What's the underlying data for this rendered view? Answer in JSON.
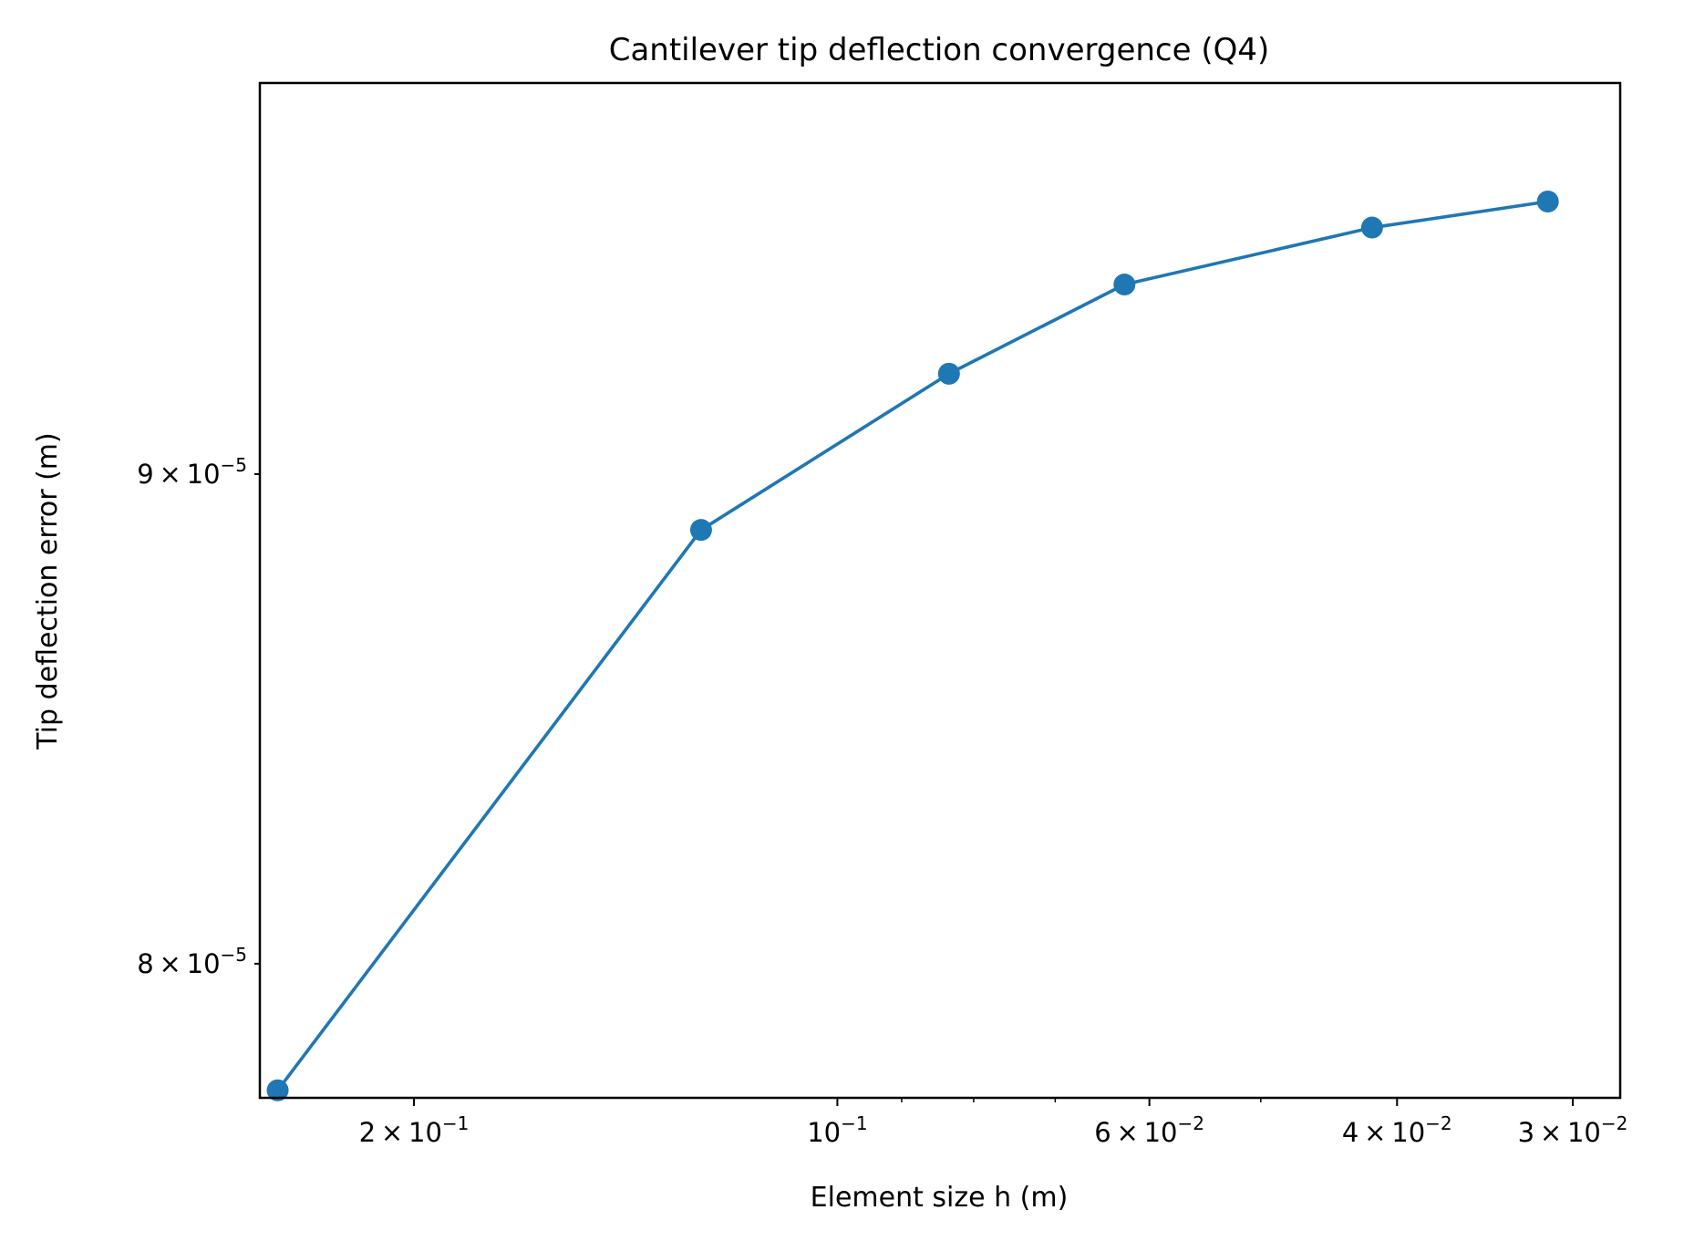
{
  "chart_data": {
    "type": "line",
    "title": "Cantilever tip deflection convergence (Q4)",
    "xlabel": "Element size h (m)",
    "ylabel": "Tip deflection error (m)",
    "x_scale": "log",
    "y_scale": "log",
    "x_inverted": true,
    "xlim": [
      0.2574,
      0.02776
    ],
    "ylim": [
      7.746e-05,
      9.888e-05
    ],
    "grid": false,
    "legend": "none",
    "line_color": "#1f77b4",
    "marker": "circle",
    "x_ticks": [
      {
        "value": 0.2,
        "base": "2",
        "exp": "−1"
      },
      {
        "value": 0.1,
        "base": "10",
        "exp": "−1",
        "plain": true
      },
      {
        "value": 0.06,
        "base": "6",
        "exp": "−2"
      },
      {
        "value": 0.04,
        "base": "4",
        "exp": "−2"
      },
      {
        "value": 0.03,
        "base": "3",
        "exp": "−2"
      }
    ],
    "x_minor_ticks": [
      0.09,
      0.08,
      0.07,
      0.05
    ],
    "y_ticks": [
      {
        "value": 9e-05,
        "base": "9",
        "exp": "−5"
      },
      {
        "value": 8e-05,
        "base": "8",
        "exp": "−5"
      }
    ],
    "series": [
      {
        "x": [
          0.25,
          0.125,
          0.0833,
          0.0625,
          0.04167,
          0.03125
        ],
        "y": [
          7.76e-05,
          8.88e-05,
          9.22e-05,
          9.42e-05,
          9.55e-05,
          9.61e-05
        ]
      }
    ]
  }
}
